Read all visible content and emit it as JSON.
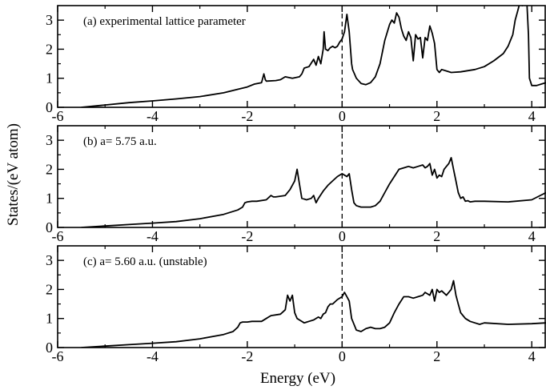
{
  "chart_data": [
    {
      "type": "line",
      "panel_label": "(a)  experimental lattice parameter",
      "xlim": [
        -6,
        4.3
      ],
      "ylim": [
        0,
        3.5
      ],
      "x_ticks": [
        -6,
        -4,
        -2,
        0,
        2,
        4
      ],
      "x_tick_labels": [
        "-6",
        "-4",
        "-2",
        "0",
        "2",
        "4"
      ],
      "y_ticks": [
        0,
        1,
        2,
        3
      ],
      "y_tick_labels": [
        "0",
        "1",
        "2",
        "3"
      ],
      "fermi_level": 0,
      "series": [
        {
          "x": [
            -5.5,
            -5.0,
            -4.5,
            -4.0,
            -3.5,
            -3.0,
            -2.5,
            -2.2,
            -2.0,
            -1.85,
            -1.7,
            -1.65,
            -1.62,
            -1.6,
            -1.4,
            -1.3,
            -1.2,
            -1.05,
            -0.9,
            -0.85,
            -0.8,
            -0.7,
            -0.6,
            -0.55,
            -0.5,
            -0.45,
            -0.4,
            -0.38,
            -0.35,
            -0.3,
            -0.25,
            -0.2,
            -0.15,
            -0.1,
            -0.05,
            0.0,
            0.05,
            0.1,
            0.15,
            0.2,
            0.22,
            0.3,
            0.4,
            0.5,
            0.6,
            0.7,
            0.8,
            0.9,
            1.0,
            1.05,
            1.1,
            1.15,
            1.2,
            1.25,
            1.3,
            1.35,
            1.4,
            1.45,
            1.5,
            1.55,
            1.6,
            1.65,
            1.7,
            1.75,
            1.8,
            1.85,
            1.9,
            1.95,
            2.0,
            2.05,
            2.1,
            2.2,
            2.3,
            2.5,
            2.8,
            3.0,
            3.2,
            3.4,
            3.5,
            3.6,
            3.65,
            3.7,
            3.75,
            3.8,
            3.85,
            3.9,
            3.93,
            3.95,
            4.0,
            4.1,
            4.2,
            4.3
          ],
          "y": [
            0.0,
            0.08,
            0.16,
            0.22,
            0.29,
            0.37,
            0.5,
            0.62,
            0.7,
            0.8,
            0.85,
            1.15,
            0.95,
            0.9,
            0.92,
            0.95,
            1.05,
            1.0,
            1.05,
            1.15,
            1.35,
            1.4,
            1.65,
            1.45,
            1.75,
            1.5,
            2.0,
            2.6,
            2.0,
            1.95,
            2.05,
            2.1,
            2.05,
            2.1,
            2.25,
            2.35,
            2.6,
            3.2,
            2.6,
            1.5,
            1.3,
            1.0,
            0.82,
            0.78,
            0.85,
            1.05,
            1.5,
            2.3,
            2.85,
            3.0,
            2.9,
            3.25,
            3.1,
            2.7,
            2.45,
            2.3,
            2.6,
            2.4,
            1.6,
            2.5,
            2.35,
            2.4,
            1.7,
            2.4,
            2.3,
            2.8,
            2.55,
            2.2,
            1.3,
            1.2,
            1.3,
            1.25,
            1.2,
            1.22,
            1.3,
            1.4,
            1.6,
            1.85,
            2.1,
            2.5,
            3.0,
            3.3,
            3.6,
            3.5,
            3.6,
            3.5,
            2.5,
            1.0,
            0.75,
            0.75,
            0.8,
            0.85
          ]
        }
      ]
    },
    {
      "type": "line",
      "panel_label": "(b)  a= 5.75 a.u.",
      "xlim": [
        -6,
        4.3
      ],
      "ylim": [
        0,
        3.5
      ],
      "x_ticks": [
        -6,
        -4,
        -2,
        0,
        2,
        4
      ],
      "x_tick_labels": [
        "-6",
        "-4",
        "-2",
        "0",
        "2",
        "4"
      ],
      "y_ticks": [
        0,
        1,
        2,
        3
      ],
      "y_tick_labels": [
        "0",
        "1",
        "2",
        "3"
      ],
      "fermi_level": 0,
      "series": [
        {
          "x": [
            -5.5,
            -5.0,
            -4.5,
            -4.0,
            -3.5,
            -3.0,
            -2.5,
            -2.2,
            -2.1,
            -2.05,
            -2.0,
            -1.9,
            -1.8,
            -1.6,
            -1.5,
            -1.45,
            -1.4,
            -1.2,
            -1.1,
            -1.0,
            -0.95,
            -0.9,
            -0.85,
            -0.75,
            -0.65,
            -0.6,
            -0.55,
            -0.5,
            -0.4,
            -0.3,
            -0.2,
            -0.1,
            0.0,
            0.05,
            0.1,
            0.15,
            0.2,
            0.25,
            0.3,
            0.4,
            0.5,
            0.6,
            0.7,
            0.8,
            0.9,
            1.0,
            1.1,
            1.2,
            1.3,
            1.4,
            1.5,
            1.6,
            1.7,
            1.75,
            1.8,
            1.85,
            1.9,
            1.95,
            2.0,
            2.05,
            2.1,
            2.15,
            2.2,
            2.25,
            2.3,
            2.35,
            2.4,
            2.45,
            2.5,
            2.55,
            2.6,
            2.65,
            2.7,
            2.8,
            3.0,
            3.5,
            4.0,
            4.3
          ],
          "y": [
            0.0,
            0.05,
            0.1,
            0.15,
            0.2,
            0.3,
            0.45,
            0.6,
            0.7,
            0.85,
            0.88,
            0.9,
            0.9,
            0.95,
            1.1,
            1.05,
            1.05,
            1.1,
            1.3,
            1.6,
            2.0,
            1.5,
            1.0,
            0.95,
            1.0,
            1.1,
            0.85,
            1.0,
            1.25,
            1.45,
            1.6,
            1.75,
            1.85,
            1.8,
            1.75,
            1.85,
            1.3,
            0.85,
            0.75,
            0.7,
            0.7,
            0.7,
            0.75,
            0.9,
            1.2,
            1.5,
            1.75,
            2.0,
            2.05,
            2.1,
            2.05,
            2.1,
            2.15,
            2.05,
            2.1,
            2.2,
            1.8,
            2.0,
            1.7,
            1.8,
            1.75,
            2.0,
            2.1,
            2.2,
            2.4,
            2.0,
            1.6,
            1.2,
            1.0,
            1.05,
            0.9,
            0.92,
            0.88,
            0.9,
            0.9,
            0.88,
            0.95,
            1.2
          ]
        }
      ]
    },
    {
      "type": "line",
      "panel_label": "(c)  a= 5.60 a.u. (unstable)",
      "xlim": [
        -6,
        4.3
      ],
      "ylim": [
        0,
        3.5
      ],
      "x_ticks": [
        -6,
        -4,
        -2,
        0,
        2,
        4
      ],
      "x_tick_labels": [
        "-6",
        "-4",
        "-2",
        "0",
        "2",
        "4"
      ],
      "y_ticks": [
        0,
        1,
        2,
        3
      ],
      "y_tick_labels": [
        "0",
        "1",
        "2",
        "3"
      ],
      "fermi_level": 0,
      "series": [
        {
          "x": [
            -5.5,
            -5.0,
            -4.5,
            -4.0,
            -3.5,
            -3.0,
            -2.5,
            -2.3,
            -2.2,
            -2.15,
            -2.1,
            -2.0,
            -1.9,
            -1.7,
            -1.6,
            -1.55,
            -1.5,
            -1.3,
            -1.2,
            -1.15,
            -1.1,
            -1.05,
            -1.0,
            -0.95,
            -0.9,
            -0.8,
            -0.7,
            -0.6,
            -0.5,
            -0.45,
            -0.4,
            -0.35,
            -0.3,
            -0.25,
            -0.2,
            -0.1,
            0.0,
            0.05,
            0.1,
            0.15,
            0.2,
            0.3,
            0.4,
            0.5,
            0.6,
            0.7,
            0.8,
            0.9,
            1.0,
            1.1,
            1.2,
            1.3,
            1.4,
            1.5,
            1.6,
            1.7,
            1.75,
            1.8,
            1.85,
            1.9,
            1.95,
            2.0,
            2.05,
            2.1,
            2.2,
            2.3,
            2.35,
            2.4,
            2.45,
            2.5,
            2.6,
            2.7,
            2.8,
            2.9,
            3.0,
            3.5,
            4.0,
            4.3
          ],
          "y": [
            0.0,
            0.05,
            0.1,
            0.15,
            0.2,
            0.3,
            0.45,
            0.55,
            0.7,
            0.85,
            0.88,
            0.88,
            0.9,
            0.9,
            1.0,
            1.05,
            1.1,
            1.15,
            1.3,
            1.8,
            1.6,
            1.8,
            1.2,
            1.0,
            0.95,
            0.85,
            0.9,
            0.95,
            1.05,
            1.0,
            1.15,
            1.2,
            1.4,
            1.5,
            1.5,
            1.65,
            1.75,
            1.9,
            1.75,
            1.6,
            1.0,
            0.6,
            0.55,
            0.65,
            0.7,
            0.65,
            0.65,
            0.7,
            0.85,
            1.2,
            1.5,
            1.75,
            1.75,
            1.7,
            1.75,
            1.8,
            1.9,
            1.85,
            1.8,
            2.0,
            1.6,
            2.0,
            1.9,
            1.95,
            1.8,
            2.0,
            2.3,
            1.8,
            1.5,
            1.2,
            1.0,
            0.9,
            0.85,
            0.8,
            0.85,
            0.8,
            0.82,
            0.85
          ]
        }
      ]
    }
  ],
  "axes": {
    "xlabel": "Energy (eV)",
    "ylabel": "States/(eV atom)"
  },
  "colors": {
    "line": "#000000",
    "fermi": "#000000"
  }
}
